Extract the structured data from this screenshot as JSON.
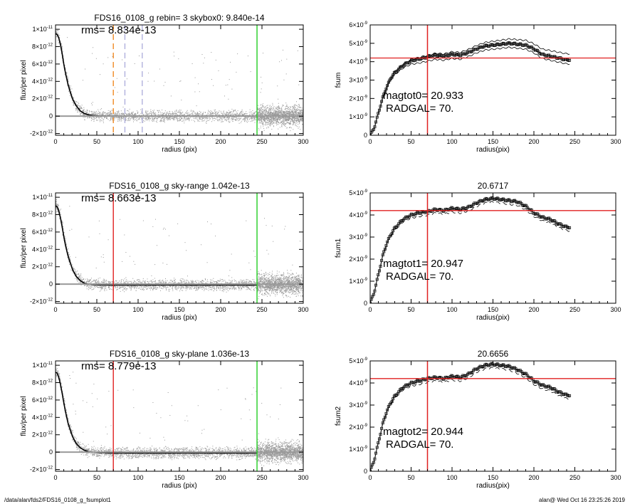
{
  "footer": {
    "path": "/data/alan/fds2/FDS16_0108_g_fsumplot1",
    "stamp": "alan@  Wed Oct 16 23:25:26 2019"
  },
  "colors": {
    "green": "#22cc22",
    "red": "#e02020",
    "orange": "#f08a24",
    "lavender": "#b0b0dd",
    "scatter": "#9a9a9a",
    "profile": "#000000"
  },
  "chart_data": [
    {
      "type": "scatter",
      "title": "FDS16_0108_g rebin= 3    skybox0:  9.840e-14",
      "annotation": "rms= 8.834e-13",
      "xlabel": "radius (pix)",
      "ylabel": "flux/per pixel",
      "xlim": [
        0,
        300
      ],
      "ylim": [
        -2.2e-12,
        1.05e-11
      ],
      "xticks": [
        "0",
        "50",
        "100",
        "150",
        "200",
        "250",
        "300"
      ],
      "yticks": [
        {
          "v": 1e-11,
          "m": "1×10",
          "e": "-11"
        },
        {
          "v": 8e-12,
          "m": "8×10",
          "e": "-12"
        },
        {
          "v": 6e-12,
          "m": "6×10",
          "e": "-12"
        },
        {
          "v": 4e-12,
          "m": "4×10",
          "e": "-12"
        },
        {
          "v": 2e-12,
          "m": "2×10",
          "e": "-12"
        },
        {
          "v": 0,
          "m": "0",
          "e": ""
        },
        {
          "v": -2e-12,
          "m": "-2×10",
          "e": "-12"
        }
      ],
      "vlines": [
        {
          "x": 70,
          "color": "orange",
          "dash": true
        },
        {
          "x": 84,
          "color": "lavender",
          "dash": true
        },
        {
          "x": 105,
          "color": "lavender",
          "dash": true
        },
        {
          "x": 244,
          "color": "green",
          "dash": false
        }
      ],
      "profile": {
        "x": [
          0,
          2,
          4,
          6,
          8,
          10,
          12,
          15,
          18,
          21,
          25,
          30,
          35,
          40,
          45,
          50,
          60,
          70,
          80,
          100,
          150,
          200,
          244
        ],
        "y": [
          9.5e-12,
          9.4e-12,
          9e-12,
          8.2e-12,
          7.2e-12,
          6e-12,
          5e-12,
          3.7e-12,
          2.7e-12,
          1.9e-12,
          1.2e-12,
          6e-13,
          3e-13,
          1.5e-13,
          8e-14,
          5e-14,
          2e-14,
          0,
          0,
          0,
          0,
          0,
          0
        ]
      },
      "sky_level": 0
    },
    {
      "type": "line",
      "title": "",
      "xlabel": "radius(pix)",
      "ylabel": "fsum",
      "xlim": [
        0,
        300
      ],
      "ylim": [
        0,
        6e-09
      ],
      "xticks": [
        "0",
        "50",
        "100",
        "150",
        "200",
        "250",
        "300"
      ],
      "yticks": [
        {
          "v": 6e-09,
          "m": "6×10",
          "e": "-9"
        },
        {
          "v": 5e-09,
          "m": "5×10",
          "e": "-9"
        },
        {
          "v": 4e-09,
          "m": "4×10",
          "e": "-9"
        },
        {
          "v": 3e-09,
          "m": "3×10",
          "e": "-9"
        },
        {
          "v": 2e-09,
          "m": "2×10",
          "e": "-9"
        },
        {
          "v": 1e-09,
          "m": "1×10",
          "e": "-9"
        },
        {
          "v": 0,
          "m": "0",
          "e": ""
        }
      ],
      "labels": [
        "magtot0=  20.933",
        "RADGAL=     70."
      ],
      "hline": 4.2e-09,
      "vline": 70,
      "x": [
        0,
        5,
        10,
        15,
        20,
        25,
        30,
        40,
        50,
        60,
        70,
        80,
        90,
        100,
        110,
        120,
        130,
        140,
        150,
        160,
        170,
        180,
        190,
        200,
        210,
        220,
        230,
        240
      ],
      "y": [
        0,
        4e-10,
        1.2e-09,
        2e-09,
        2.6e-09,
        3.1e-09,
        3.4e-09,
        3.8e-09,
        4.05e-09,
        4.15e-09,
        4.25e-09,
        4.35e-09,
        4.3e-09,
        4.4e-09,
        4.35e-09,
        4.5e-09,
        4.7e-09,
        4.85e-09,
        4.9e-09,
        4.95e-09,
        5e-09,
        4.95e-09,
        4.9e-09,
        4.7e-09,
        4.4e-09,
        4.3e-09,
        4.2e-09,
        4.1e-09
      ],
      "upper_offset": 2.2e-10,
      "lower_offset": -2.2e-10,
      "marker_max_x": 245
    },
    {
      "type": "scatter",
      "title": "FDS16_0108_g sky-range  1.042e-13",
      "annotation": "rms= 8.663e-13",
      "xlabel": "radius (pix)",
      "ylabel": "flux/per pixel",
      "xlim": [
        0,
        300
      ],
      "ylim": [
        -2.2e-12,
        1.05e-11
      ],
      "xticks": [
        "0",
        "50",
        "100",
        "150",
        "200",
        "250",
        "300"
      ],
      "yticks": [
        {
          "v": 1e-11,
          "m": "1×10",
          "e": "-11"
        },
        {
          "v": 8e-12,
          "m": "8×10",
          "e": "-12"
        },
        {
          "v": 6e-12,
          "m": "6×10",
          "e": "-12"
        },
        {
          "v": 4e-12,
          "m": "4×10",
          "e": "-12"
        },
        {
          "v": 2e-12,
          "m": "2×10",
          "e": "-12"
        },
        {
          "v": 0,
          "m": "0",
          "e": ""
        },
        {
          "v": -2e-12,
          "m": "-2×10",
          "e": "-12"
        }
      ],
      "vlines": [
        {
          "x": 70,
          "color": "red",
          "dash": false
        },
        {
          "x": 244,
          "color": "green",
          "dash": false
        }
      ],
      "profile": {
        "x": [
          0,
          2,
          4,
          6,
          8,
          10,
          12,
          15,
          18,
          21,
          25,
          30,
          35,
          40,
          45,
          50,
          60,
          70,
          80,
          100,
          150,
          200,
          244
        ],
        "y": [
          9e-12,
          8.9e-12,
          8.4e-12,
          7.6e-12,
          6.6e-12,
          5.5e-12,
          4.5e-12,
          3.3e-12,
          2.4e-12,
          1.6e-12,
          9e-13,
          4e-13,
          1e-13,
          0,
          -5e-14,
          -8e-14,
          -1e-13,
          -1e-13,
          -1e-13,
          -1e-13,
          -1e-13,
          -1e-13,
          -1e-13
        ]
      },
      "sky_level": 0
    },
    {
      "type": "line",
      "title": "20.6717",
      "xlabel": "radius(pix)",
      "ylabel": "fsum1",
      "xlim": [
        0,
        300
      ],
      "ylim": [
        0,
        5e-09
      ],
      "xticks": [
        "0",
        "50",
        "100",
        "150",
        "200",
        "250",
        "300"
      ],
      "yticks": [
        {
          "v": 5e-09,
          "m": "5×10",
          "e": "-9"
        },
        {
          "v": 4e-09,
          "m": "4×10",
          "e": "-9"
        },
        {
          "v": 3e-09,
          "m": "3×10",
          "e": "-9"
        },
        {
          "v": 2e-09,
          "m": "2×10",
          "e": "-9"
        },
        {
          "v": 1e-09,
          "m": "1×10",
          "e": "-9"
        },
        {
          "v": 0,
          "m": "0",
          "e": ""
        }
      ],
      "labels": [
        "magtot1=  20.947",
        "RADGAL=     70."
      ],
      "hline": 4.2e-09,
      "vline": 70,
      "x": [
        0,
        5,
        10,
        15,
        20,
        25,
        30,
        40,
        50,
        60,
        70,
        80,
        90,
        100,
        110,
        120,
        130,
        140,
        150,
        160,
        170,
        180,
        190,
        200,
        210,
        220,
        230,
        240
      ],
      "y": [
        0,
        5e-10,
        1.3e-09,
        2.1e-09,
        2.7e-09,
        3.1e-09,
        3.4e-09,
        3.8e-09,
        4e-09,
        4.1e-09,
        4.15e-09,
        4.25e-09,
        4.2e-09,
        4.3e-09,
        4.25e-09,
        4.35e-09,
        4.55e-09,
        4.7e-09,
        4.75e-09,
        4.7e-09,
        4.65e-09,
        4.6e-09,
        4.4e-09,
        4.1e-09,
        3.9e-09,
        3.8e-09,
        3.6e-09,
        3.45e-09
      ],
      "upper_offset": 0,
      "lower_offset": -1.6e-10,
      "marker_max_x": 245
    },
    {
      "type": "scatter",
      "title": "FDS16_0108_g sky-plane  1.036e-13",
      "annotation": "rms= 8.779e-13",
      "xlabel": "radius (pix)",
      "ylabel": "flux/per pixel",
      "xlim": [
        0,
        300
      ],
      "ylim": [
        -2.2e-12,
        1.05e-11
      ],
      "xticks": [
        "0",
        "50",
        "100",
        "150",
        "200",
        "250",
        "300"
      ],
      "yticks": [
        {
          "v": 1e-11,
          "m": "1×10",
          "e": "-11"
        },
        {
          "v": 8e-12,
          "m": "8×10",
          "e": "-12"
        },
        {
          "v": 6e-12,
          "m": "6×10",
          "e": "-12"
        },
        {
          "v": 4e-12,
          "m": "4×10",
          "e": "-12"
        },
        {
          "v": 2e-12,
          "m": "2×10",
          "e": "-12"
        },
        {
          "v": 0,
          "m": "0",
          "e": ""
        },
        {
          "v": -2e-12,
          "m": "-2×10",
          "e": "-12"
        }
      ],
      "vlines": [
        {
          "x": 70,
          "color": "red",
          "dash": false
        },
        {
          "x": 244,
          "color": "green",
          "dash": false
        }
      ],
      "profile": {
        "x": [
          0,
          2,
          4,
          6,
          8,
          10,
          12,
          15,
          18,
          21,
          25,
          30,
          35,
          40,
          45,
          50,
          60,
          70,
          80,
          100,
          150,
          200,
          244
        ],
        "y": [
          9.2e-12,
          9.1e-12,
          8.6e-12,
          7.8e-12,
          6.8e-12,
          5.7e-12,
          4.7e-12,
          3.4e-12,
          2.5e-12,
          1.7e-12,
          1e-12,
          5e-13,
          2e-13,
          5e-14,
          0,
          -5e-14,
          -8e-14,
          -1e-13,
          -1e-13,
          -1e-13,
          -1e-13,
          -1e-13,
          -1e-13
        ]
      },
      "sky_level": 0
    },
    {
      "type": "line",
      "title": "20.6656",
      "xlabel": "radius(pix)",
      "ylabel": "fsum2",
      "xlim": [
        0,
        300
      ],
      "ylim": [
        0,
        5e-09
      ],
      "xticks": [
        "0",
        "50",
        "100",
        "150",
        "200",
        "250",
        "300"
      ],
      "yticks": [
        {
          "v": 5e-09,
          "m": "5×10",
          "e": "-9"
        },
        {
          "v": 4e-09,
          "m": "4×10",
          "e": "-9"
        },
        {
          "v": 3e-09,
          "m": "3×10",
          "e": "-9"
        },
        {
          "v": 2e-09,
          "m": "2×10",
          "e": "-9"
        },
        {
          "v": 1e-09,
          "m": "1×10",
          "e": "-9"
        },
        {
          "v": 0,
          "m": "0",
          "e": ""
        }
      ],
      "labels": [
        "magtot2=  20.944",
        "RADGAL=     70."
      ],
      "hline": 4.2e-09,
      "vline": 70,
      "x": [
        0,
        5,
        10,
        15,
        20,
        25,
        30,
        40,
        50,
        60,
        70,
        80,
        90,
        100,
        110,
        120,
        130,
        140,
        150,
        160,
        170,
        180,
        190,
        200,
        210,
        220,
        230,
        240
      ],
      "y": [
        0,
        5e-10,
        1.3e-09,
        2.1e-09,
        2.7e-09,
        3.1e-09,
        3.4e-09,
        3.8e-09,
        4e-09,
        4.1e-09,
        4.2e-09,
        4.25e-09,
        4.2e-09,
        4.3e-09,
        4.25e-09,
        4.4e-09,
        4.65e-09,
        4.8e-09,
        4.85e-09,
        4.8e-09,
        4.75e-09,
        4.6e-09,
        4.4e-09,
        4.1e-09,
        3.9e-09,
        3.8e-09,
        3.6e-09,
        3.45e-09
      ],
      "upper_offset": 0,
      "lower_offset": -1.6e-10,
      "marker_max_x": 245
    }
  ]
}
